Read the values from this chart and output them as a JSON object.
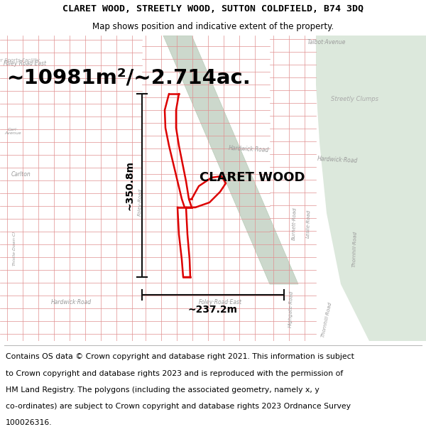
{
  "title": "CLARET WOOD, STREETLY WOOD, SUTTON COLDFIELD, B74 3DQ",
  "subtitle": "Map shows position and indicative extent of the property.",
  "area_label": "~10981m²/~2.714ac.",
  "property_label": "CLARET WOOD",
  "dim_horizontal": "~237.2m",
  "dim_vertical": "~350.8m",
  "footer_lines": [
    "Contains OS data © Crown copyright and database right 2021. This information is subject",
    "to Crown copyright and database rights 2023 and is reproduced with the permission of",
    "HM Land Registry. The polygons (including the associated geometry, namely x, y",
    "co-ordinates) are subject to Crown copyright and database rights 2023 Ordnance Survey",
    "100026316."
  ],
  "map_bg": "#f2eeee",
  "green_color": "#dce8dc",
  "canal_color": "#ccd8cc",
  "street_color": "#e09090",
  "building_edge": "#d08080",
  "building_face": "#f8f0f0",
  "property_color": "#dd0000",
  "dim_color": "#111111",
  "label_color": "#999999",
  "text_color": "#555555"
}
